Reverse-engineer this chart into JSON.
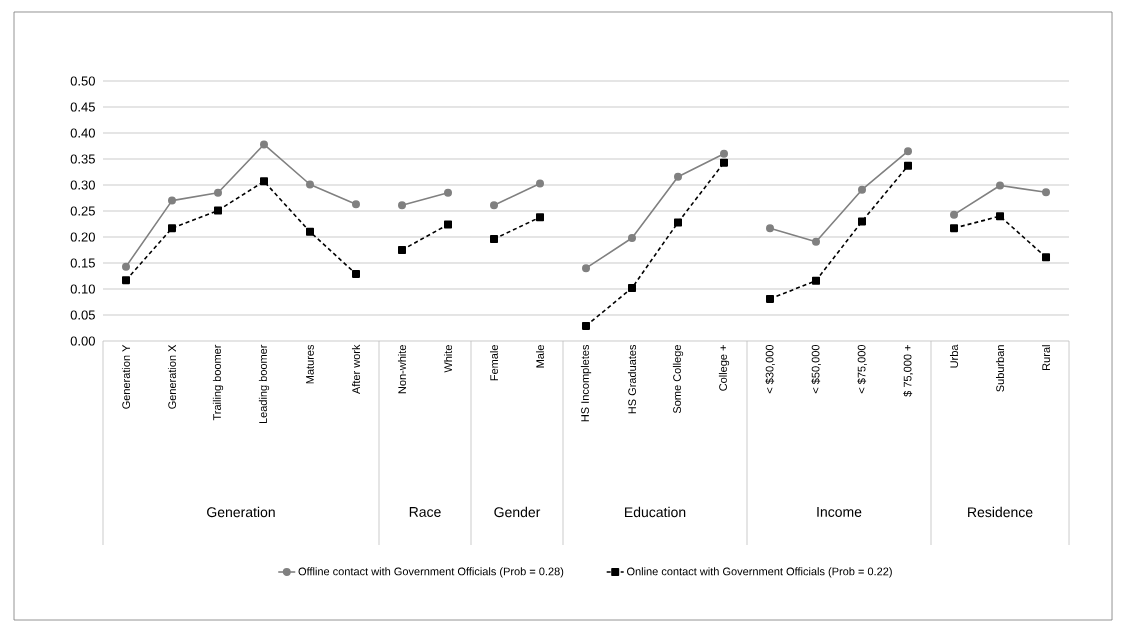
{
  "chart_data": [
    {
      "type": "line",
      "xlabel": "Generation",
      "categories": [
        "Generation Y",
        "Generation X",
        "Trailing boomer",
        "Leading boomer",
        "Matures",
        "After work"
      ],
      "ylim": [
        0,
        0.5
      ],
      "yticks": [
        {
          "value": 0,
          "label": "0.00"
        },
        {
          "value": 0.05,
          "label": "0.05"
        },
        {
          "value": 0.1,
          "label": "0.10"
        },
        {
          "value": 0.15,
          "label": "0.15"
        },
        {
          "value": 0.2,
          "label": "0.20"
        },
        {
          "value": 0.25,
          "label": "0.25"
        },
        {
          "value": 0.3,
          "label": "0.30"
        },
        {
          "value": 0.35,
          "label": "0.35"
        },
        {
          "value": 0.4,
          "label": "0.40"
        },
        {
          "value": 0.45,
          "label": "0.45"
        },
        {
          "value": 0.5,
          "label": "0.50"
        }
      ],
      "grid": "y",
      "legend": "bottom",
      "series": [
        {
          "name": "Offline contact with Government Officials (Prob = 0.28)",
          "color": "#808080",
          "marker": "circle",
          "line_style": "solid",
          "values": [
            0.143,
            0.27,
            0.285,
            0.378,
            0.301,
            0.263
          ]
        },
        {
          "name": "Online contact with Government Officials (Prob = 0.22)",
          "color": "#000000",
          "marker": "square",
          "line_style": "dashed",
          "values": [
            0.117,
            0.217,
            0.251,
            0.307,
            0.21,
            0.129
          ]
        }
      ]
    },
    {
      "type": "line",
      "xlabel": "Race",
      "categories": [
        "Non-white",
        "White"
      ],
      "ylim": [
        0,
        0.5
      ],
      "yticks": [
        0,
        0.05,
        0.1,
        0.15,
        0.2,
        0.25,
        0.3,
        0.35,
        0.4,
        0.45,
        0.5
      ],
      "grid": "y",
      "tick_labels": "x",
      "series": [
        {
          "color": "#808080",
          "marker": "circle",
          "line_style": "solid",
          "values": [
            0.261,
            0.285
          ]
        },
        {
          "color": "#000000",
          "marker": "square",
          "line_style": "dashed",
          "values": [
            0.175,
            0.224
          ]
        }
      ]
    },
    {
      "type": "line",
      "xlabel": "Gender",
      "categories": [
        "Female",
        "Male"
      ],
      "ylim": [
        0,
        0.5
      ],
      "yticks": [
        0,
        0.05,
        0.1,
        0.15,
        0.2,
        0.25,
        0.3,
        0.35,
        0.4,
        0.45,
        0.5
      ],
      "grid": "y",
      "tick_labels": "x",
      "series": [
        {
          "color": "#808080",
          "marker": "circle",
          "line_style": "solid",
          "values": [
            0.261,
            0.303
          ]
        },
        {
          "color": "#000000",
          "marker": "square",
          "line_style": "dashed",
          "values": [
            0.196,
            0.238
          ]
        }
      ]
    },
    {
      "type": "line",
      "xlabel": "Education",
      "categories": [
        "HS Incompletes",
        "HS Graduates",
        "Some College",
        "College +"
      ],
      "ylim": [
        0,
        0.5
      ],
      "yticks": [
        0,
        0.05,
        0.1,
        0.15,
        0.2,
        0.25,
        0.3,
        0.35,
        0.4,
        0.45,
        0.5
      ],
      "grid": "y",
      "tick_labels": "x",
      "series": [
        {
          "color": "#808080",
          "marker": "circle",
          "line_style": "solid",
          "values": [
            0.14,
            0.198,
            0.316,
            0.36
          ]
        },
        {
          "color": "#000000",
          "marker": "square",
          "line_style": "dashed",
          "values": [
            0.029,
            0.102,
            0.228,
            0.343
          ]
        }
      ]
    },
    {
      "type": "line",
      "xlabel": "Income",
      "categories": [
        "< $30,000",
        "< $50,000",
        "< $75,000",
        "$ 75,000 +"
      ],
      "ylim": [
        0,
        0.5
      ],
      "yticks": [
        0,
        0.05,
        0.1,
        0.15,
        0.2,
        0.25,
        0.3,
        0.35,
        0.4,
        0.45,
        0.5
      ],
      "grid": "y",
      "tick_labels": "x",
      "series": [
        {
          "color": "#808080",
          "marker": "circle",
          "line_style": "solid",
          "values": [
            0.217,
            0.191,
            0.291,
            0.365
          ]
        },
        {
          "color": "#000000",
          "marker": "square",
          "line_style": "dashed",
          "values": [
            0.081,
            0.116,
            0.23,
            0.337
          ]
        }
      ]
    },
    {
      "type": "line",
      "xlabel": "Residence",
      "categories": [
        "Urba",
        "Suburban",
        "Rural"
      ],
      "ylim": [
        0,
        0.5
      ],
      "yticks": [
        0,
        0.05,
        0.1,
        0.15,
        0.2,
        0.25,
        0.3,
        0.35,
        0.4,
        0.45,
        0.5
      ],
      "grid": "y",
      "tick_labels": "x",
      "series": [
        {
          "color": "#808080",
          "marker": "circle",
          "line_style": "solid",
          "values": [
            0.243,
            0.299,
            0.286
          ]
        },
        {
          "color": "#000000",
          "marker": "square",
          "line_style": "dashed",
          "values": [
            0.217,
            0.24,
            0.161
          ]
        }
      ]
    }
  ]
}
